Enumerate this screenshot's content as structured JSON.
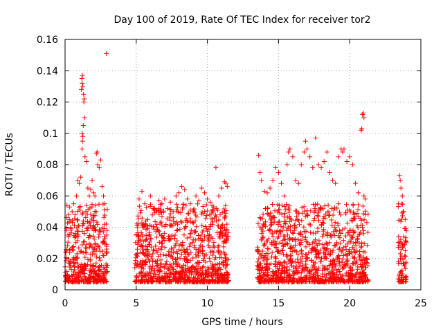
{
  "chart_data": {
    "type": "scatter",
    "title": "Day 100 of 2019, Rate Of TEC Index for receiver tor2",
    "xlabel": "GPS time / hours",
    "ylabel": "ROTI / TECUs",
    "xlim": [
      0,
      25
    ],
    "ylim": [
      0,
      0.16
    ],
    "xticks": [
      0,
      5,
      10,
      15,
      20,
      25
    ],
    "xtick_labels": [
      "0",
      "5",
      "10",
      "15",
      "20",
      "25"
    ],
    "yticks": [
      0,
      0.02,
      0.04,
      0.06,
      0.08,
      0.1,
      0.12,
      0.14,
      0.16
    ],
    "ytick_labels": [
      "0",
      "0.02",
      "0.04",
      "0.06",
      "0.08",
      "0.1",
      "0.12",
      "0.14",
      "0.16"
    ],
    "grid": true,
    "marker": "+",
    "color": "#ff0000",
    "series": [
      {
        "name": "ROTI",
        "points": [
          [
            0.1,
            0.038
          ],
          [
            0.2,
            0.035
          ],
          [
            0.3,
            0.045
          ],
          [
            0.4,
            0.04
          ],
          [
            0.5,
            0.05
          ],
          [
            0.6,
            0.055
          ],
          [
            0.7,
            0.048
          ],
          [
            0.8,
            0.06
          ],
          [
            0.9,
            0.07
          ],
          [
            1.0,
            0.068
          ],
          [
            1.1,
            0.072
          ],
          [
            1.15,
            0.128
          ],
          [
            1.18,
            0.135
          ],
          [
            1.2,
            0.132
          ],
          [
            1.22,
            0.137
          ],
          [
            1.25,
            0.13
          ],
          [
            1.3,
            0.125
          ],
          [
            1.32,
            0.12
          ],
          [
            1.35,
            0.122
          ],
          [
            1.38,
            0.11
          ],
          [
            1.2,
            0.1
          ],
          [
            1.22,
            0.095
          ],
          [
            1.25,
            0.098
          ],
          [
            1.28,
            0.105
          ],
          [
            1.2,
            0.09
          ],
          [
            1.4,
            0.085
          ],
          [
            1.5,
            0.082
          ],
          [
            1.6,
            0.065
          ],
          [
            1.7,
            0.06
          ],
          [
            1.8,
            0.064
          ],
          [
            1.9,
            0.07
          ],
          [
            2.0,
            0.062
          ],
          [
            2.1,
            0.06
          ],
          [
            2.2,
            0.087
          ],
          [
            2.25,
            0.088
          ],
          [
            2.3,
            0.08
          ],
          [
            2.4,
            0.078
          ],
          [
            2.5,
            0.083
          ],
          [
            2.6,
            0.066
          ],
          [
            2.7,
            0.06
          ],
          [
            2.8,
            0.055
          ],
          [
            2.9,
            0.042
          ],
          [
            2.95,
            0.038
          ],
          [
            2.9,
            0.151
          ],
          [
            5.0,
            0.035
          ],
          [
            5.2,
            0.058
          ],
          [
            5.4,
            0.063
          ],
          [
            5.6,
            0.055
          ],
          [
            5.8,
            0.045
          ],
          [
            6.0,
            0.06
          ],
          [
            6.2,
            0.052
          ],
          [
            6.4,
            0.05
          ],
          [
            6.6,
            0.057
          ],
          [
            6.8,
            0.055
          ],
          [
            7.0,
            0.058
          ],
          [
            7.2,
            0.052
          ],
          [
            7.4,
            0.056
          ],
          [
            7.6,
            0.05
          ],
          [
            7.8,
            0.06
          ],
          [
            8.0,
            0.062
          ],
          [
            8.2,
            0.066
          ],
          [
            8.4,
            0.064
          ],
          [
            8.6,
            0.058
          ],
          [
            8.8,
            0.055
          ],
          [
            9.0,
            0.05
          ],
          [
            9.2,
            0.06
          ],
          [
            9.4,
            0.057
          ],
          [
            9.6,
            0.065
          ],
          [
            9.8,
            0.062
          ],
          [
            10.0,
            0.058
          ],
          [
            10.2,
            0.056
          ],
          [
            10.4,
            0.05
          ],
          [
            10.6,
            0.078
          ],
          [
            10.8,
            0.06
          ],
          [
            11.0,
            0.065
          ],
          [
            11.2,
            0.069
          ],
          [
            11.3,
            0.068
          ],
          [
            11.4,
            0.066
          ],
          [
            13.6,
            0.086
          ],
          [
            13.7,
            0.075
          ],
          [
            13.8,
            0.07
          ],
          [
            14.0,
            0.063
          ],
          [
            14.2,
            0.062
          ],
          [
            14.4,
            0.065
          ],
          [
            14.6,
            0.07
          ],
          [
            14.8,
            0.078
          ],
          [
            15.0,
            0.075
          ],
          [
            15.2,
            0.068
          ],
          [
            15.4,
            0.06
          ],
          [
            15.6,
            0.08
          ],
          [
            15.7,
            0.088
          ],
          [
            15.8,
            0.09
          ],
          [
            16.0,
            0.085
          ],
          [
            16.2,
            0.07
          ],
          [
            16.4,
            0.068
          ],
          [
            16.6,
            0.08
          ],
          [
            16.8,
            0.088
          ],
          [
            16.9,
            0.095
          ],
          [
            17.0,
            0.09
          ],
          [
            17.2,
            0.085
          ],
          [
            17.4,
            0.078
          ],
          [
            17.6,
            0.097
          ],
          [
            17.8,
            0.08
          ],
          [
            18.0,
            0.078
          ],
          [
            18.2,
            0.082
          ],
          [
            18.4,
            0.088
          ],
          [
            18.6,
            0.075
          ],
          [
            18.8,
            0.07
          ],
          [
            19.0,
            0.068
          ],
          [
            19.2,
            0.085
          ],
          [
            19.4,
            0.09
          ],
          [
            19.5,
            0.088
          ],
          [
            19.6,
            0.09
          ],
          [
            19.8,
            0.082
          ],
          [
            20.0,
            0.085
          ],
          [
            20.2,
            0.08
          ],
          [
            20.4,
            0.068
          ],
          [
            20.6,
            0.062
          ],
          [
            20.8,
            0.102
          ],
          [
            20.85,
            0.103
          ],
          [
            20.9,
            0.112
          ],
          [
            20.95,
            0.113
          ],
          [
            21.0,
            0.11
          ],
          [
            21.0,
            0.06
          ],
          [
            21.1,
            0.058
          ],
          [
            23.5,
            0.073
          ],
          [
            23.55,
            0.07
          ],
          [
            23.6,
            0.065
          ],
          [
            23.7,
            0.06
          ],
          [
            23.8,
            0.05
          ],
          [
            23.9,
            0.045
          ]
        ]
      }
    ]
  }
}
